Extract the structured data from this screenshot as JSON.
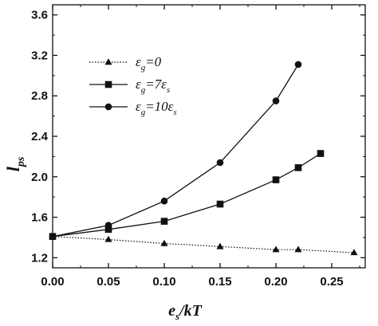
{
  "chart_data": {
    "type": "line",
    "xlim": [
      0.0,
      0.28
    ],
    "ylim": [
      1.1,
      3.7
    ],
    "x_ticks": [
      "0.00",
      "0.05",
      "0.10",
      "0.15",
      "0.20",
      "0.25"
    ],
    "y_ticks": [
      "1.2",
      "1.6",
      "2.0",
      "2.4",
      "2.8",
      "3.2",
      "3.6"
    ],
    "xlabel": {
      "main": "e",
      "sub": "s",
      "tail": "/kT"
    },
    "ylabel": {
      "main": "l",
      "sub": "ps"
    },
    "grid": false,
    "legend_position": "top-left",
    "series": [
      {
        "legend": {
          "prefix": "ε",
          "sub": "g",
          "value": "=0",
          "value_sub": ""
        },
        "marker": "triangle",
        "line_style": "dotted",
        "x": [
          0.0,
          0.05,
          0.1,
          0.15,
          0.2,
          0.22,
          0.27
        ],
        "y": [
          1.41,
          1.38,
          1.34,
          1.31,
          1.28,
          1.28,
          1.25
        ]
      },
      {
        "legend": {
          "prefix": "ε",
          "sub": "g",
          "value": "=7ε",
          "value_sub": "s"
        },
        "marker": "square",
        "line_style": "solid",
        "x": [
          0.0,
          0.05,
          0.1,
          0.15,
          0.2,
          0.22,
          0.24
        ],
        "y": [
          1.41,
          1.48,
          1.56,
          1.73,
          1.97,
          2.09,
          2.23
        ]
      },
      {
        "legend": {
          "prefix": "ε",
          "sub": "g",
          "value": "=10ε",
          "value_sub": "s"
        },
        "marker": "circle",
        "line_style": "solid",
        "x": [
          0.0,
          0.05,
          0.1,
          0.15,
          0.2,
          0.22
        ],
        "y": [
          1.41,
          1.52,
          1.76,
          2.14,
          2.75,
          3.11
        ]
      }
    ]
  }
}
